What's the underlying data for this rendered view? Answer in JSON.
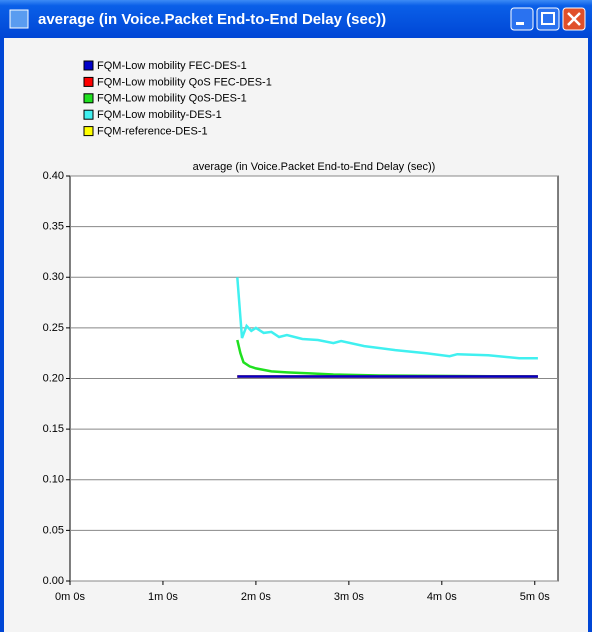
{
  "window_title": "average (in Voice.Packet End-to-End Delay (sec))",
  "chart_data": {
    "type": "line",
    "title": "average (in Voice.Packet End-to-End Delay (sec))",
    "series": [
      {
        "name": "FQM-Low mobility FEC-DES-1",
        "color": "#0000c8",
        "x": [
          108,
          302
        ],
        "values": [
          0.202,
          0.202
        ]
      },
      {
        "name": "FQM-Low mobility QoS FEC-DES-1",
        "color": "#ff0000",
        "x": [
          108,
          302
        ],
        "values": [
          0.202,
          0.202
        ]
      },
      {
        "name": "FQM-Low mobility QoS-DES-1",
        "color": "#20e020",
        "x": [
          108,
          110,
          112,
          116,
          120,
          130,
          140,
          155,
          170,
          200,
          250,
          302
        ],
        "values": [
          0.238,
          0.225,
          0.216,
          0.212,
          0.21,
          0.207,
          0.206,
          0.205,
          0.204,
          0.203,
          0.2025,
          0.202
        ]
      },
      {
        "name": "FQM-Low mobility-DES-1",
        "color": "#40f0f0",
        "x": [
          108,
          111,
          114,
          117,
          120,
          125,
          130,
          135,
          140,
          150,
          160,
          170,
          175,
          190,
          210,
          230,
          245,
          250,
          270,
          290,
          302
        ],
        "values": [
          0.3,
          0.24,
          0.252,
          0.247,
          0.25,
          0.245,
          0.246,
          0.241,
          0.243,
          0.239,
          0.238,
          0.235,
          0.237,
          0.232,
          0.228,
          0.225,
          0.222,
          0.224,
          0.223,
          0.22,
          0.22
        ]
      },
      {
        "name": "FQM-reference-DES-1",
        "color": "#ffff00",
        "x": [
          108,
          302
        ],
        "values": [
          0.202,
          0.202
        ]
      }
    ],
    "draw_order": [
      4,
      3,
      2,
      1,
      0
    ],
    "xlim": [
      0,
      315
    ],
    "xticks": [
      {
        "value": 0,
        "label": "0m 0s"
      },
      {
        "value": 60,
        "label": "1m 0s"
      },
      {
        "value": 120,
        "label": "2m 0s"
      },
      {
        "value": 180,
        "label": "3m 0s"
      },
      {
        "value": 240,
        "label": "4m 0s"
      },
      {
        "value": 300,
        "label": "5m 0s"
      }
    ],
    "ylim": [
      0,
      0.4
    ],
    "yticks": [
      {
        "value": 0,
        "label": "0.00"
      },
      {
        "value": 0.05,
        "label": "0.05"
      },
      {
        "value": 0.1,
        "label": "0.10"
      },
      {
        "value": 0.15,
        "label": "0.15"
      },
      {
        "value": 0.2,
        "label": "0.20"
      },
      {
        "value": 0.25,
        "label": "0.25"
      },
      {
        "value": 0.3,
        "label": "0.30"
      },
      {
        "value": 0.35,
        "label": "0.35"
      },
      {
        "value": 0.4,
        "label": "0.40"
      }
    ],
    "grid": true
  }
}
